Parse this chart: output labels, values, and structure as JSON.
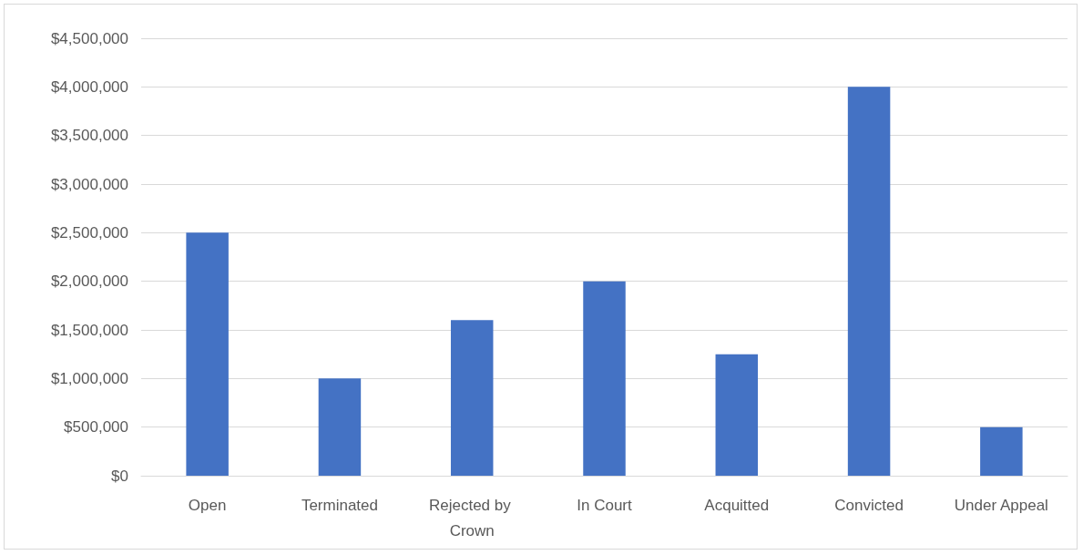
{
  "chart_data": {
    "type": "bar",
    "categories": [
      "Open",
      "Terminated",
      "Rejected by Crown",
      "In Court",
      "Acquitted",
      "Convicted",
      "Under Appeal"
    ],
    "values": [
      2500000,
      1000000,
      1600000,
      2000000,
      1250000,
      4000000,
      500000
    ],
    "color": "#4472c4",
    "ylim": [
      0,
      4500000
    ],
    "yticks": [
      {
        "value": 0,
        "label": "$0"
      },
      {
        "value": 500000,
        "label": "$500,000"
      },
      {
        "value": 1000000,
        "label": "$1,000,000"
      },
      {
        "value": 1500000,
        "label": "$1,500,000"
      },
      {
        "value": 2000000,
        "label": "$2,000,000"
      },
      {
        "value": 2500000,
        "label": "$2,500,000"
      },
      {
        "value": 3000000,
        "label": "$3,000,000"
      },
      {
        "value": 3500000,
        "label": "$3,500,000"
      },
      {
        "value": 4000000,
        "label": "$4,000,000"
      },
      {
        "value": 4500000,
        "label": "$4,500,000"
      }
    ],
    "grid": "y"
  }
}
